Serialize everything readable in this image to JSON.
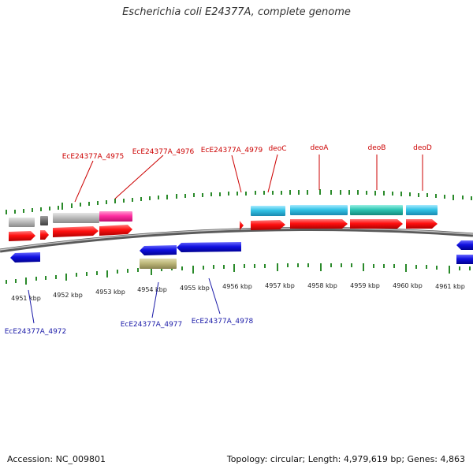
{
  "title": "Escherichia coli E24377A, complete genome",
  "footer": {
    "accession": "Accession: NC_009801",
    "summary": "Topology: circular; Length: 4,979,619 bp; Genes: 4,863"
  },
  "colors": {
    "forward_cds": "#ff0000",
    "reverse_cds": "#1010e0",
    "rna": "#33c3e6",
    "teal": "#2ec6b4",
    "pink": "#ff2fa2",
    "gray": "#b8b8b8",
    "dark_gray": "#707070",
    "olive": "#bdb77a",
    "backbone": "#808080",
    "ticks": "#2a8a2a",
    "top_labels": "#cc0000",
    "bottom_labels": "#1a1aa8"
  },
  "scale": {
    "labels": [
      "4951 kbp",
      "4952 kbp",
      "4953 kbp",
      "4954 kbp",
      "4955 kbp",
      "4956 kbp",
      "4957 kbp",
      "4958 kbp",
      "4959 kbp",
      "4960 kbp",
      "4961 kbp"
    ]
  },
  "top_labels": [
    "EcE24377A_4975",
    "EcE24377A_4976",
    "EcE24377A_4979",
    "deoC",
    "deoA",
    "deoB",
    "deoD"
  ],
  "bottom_labels": [
    "EcE24377A_4972",
    "EcE24377A_4977",
    "EcE24377A_4978"
  ]
}
